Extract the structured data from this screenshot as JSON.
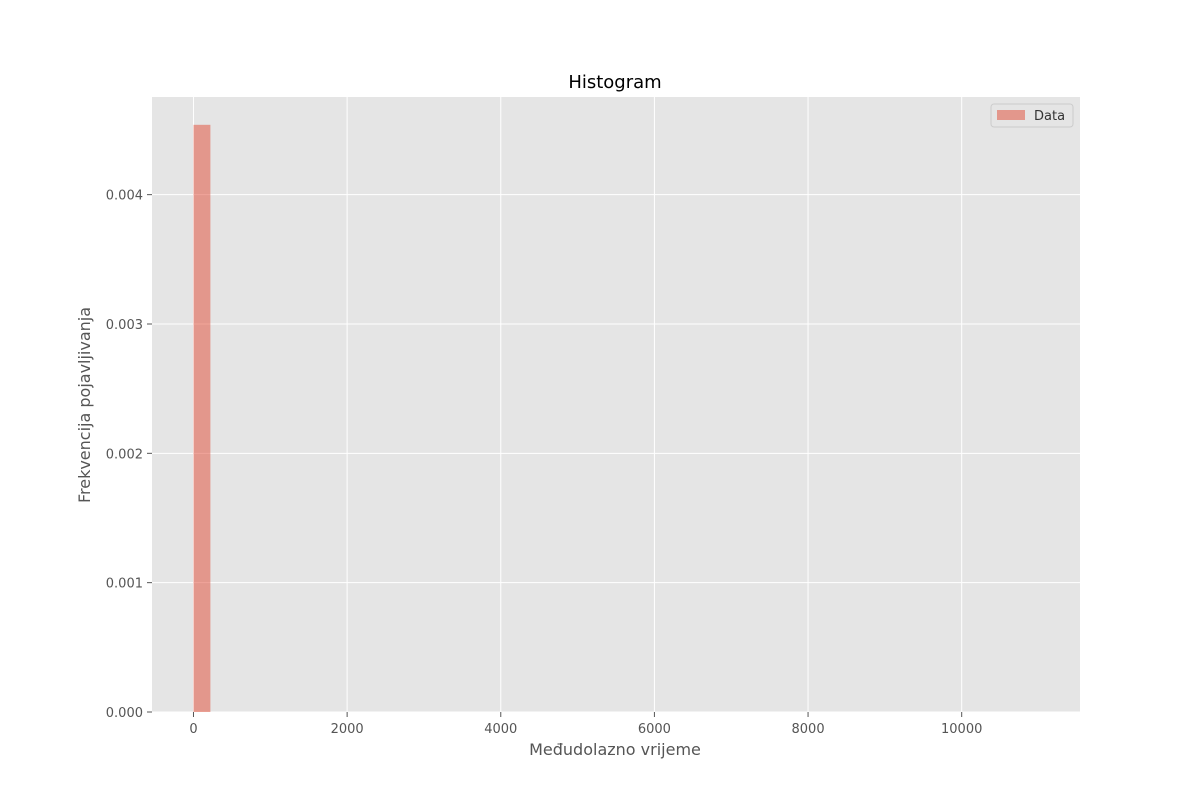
{
  "chart_data": {
    "type": "bar",
    "title": "Histogram",
    "xlabel": "Međudolazno vrijeme",
    "ylabel": "Frekvencija pojavljivanja",
    "xlim": [
      -540,
      11540
    ],
    "ylim": [
      0,
      0.004755
    ],
    "xticks": [
      0,
      2000,
      4000,
      6000,
      8000,
      10000
    ],
    "yticks": [
      0.0,
      0.001,
      0.002,
      0.003,
      0.004
    ],
    "ytick_labels": [
      "0.000",
      "0.001",
      "0.002",
      "0.003",
      "0.004"
    ],
    "grid": true,
    "legend_position": "top-right",
    "series": [
      {
        "name": "Data",
        "color": "#e24a33",
        "opacity": 0.5,
        "bins": [
          {
            "x0": 0,
            "x1": 220,
            "value": 0.00454
          }
        ]
      }
    ]
  }
}
